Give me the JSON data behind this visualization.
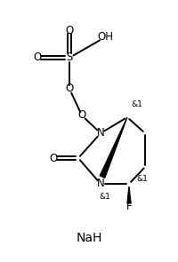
{
  "background_color": "#ffffff",
  "figsize": [
    2.01,
    2.95
  ],
  "dpi": 100,
  "NaH_text": "NaH",
  "OH_text": "OH",
  "O_top_text": "O",
  "O_left_text": "O",
  "S_text": "S",
  "N1_text": "N",
  "N2_text": "N",
  "O_carbonyl_text": "O",
  "O_link_text": "O",
  "F_text": "F",
  "stereo_top": "&1",
  "stereo_N2": "&1",
  "stereo_CF": "&1"
}
